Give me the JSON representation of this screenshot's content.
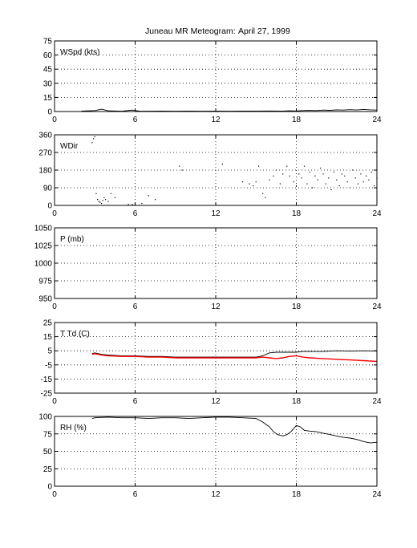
{
  "title": {
    "main": "Juneau MR Meteogram:",
    "date": "April 27, 1999"
  },
  "chart_data": [
    {
      "type": "line",
      "label": "WSpd (kts)",
      "xlim": [
        0,
        24
      ],
      "xticks": [
        "0",
        "6",
        "12",
        "18",
        "24"
      ],
      "ylim": [
        0,
        75
      ],
      "yticks": [
        "0",
        "15",
        "30",
        "45",
        "60",
        "75"
      ],
      "grid": true,
      "series": [
        {
          "color": "#000000",
          "x": [
            2.0,
            3.0,
            3.5,
            4.0,
            5.0,
            5.8,
            6.3,
            7.0,
            8.0,
            9.0,
            10.0,
            11.0,
            12.0,
            13.0,
            14.0,
            15.0,
            16.0,
            17.0,
            17.5,
            18.0,
            18.5,
            19.0,
            19.5,
            20.0,
            20.5,
            21.0,
            21.5,
            22.0,
            22.5,
            23.0,
            23.5,
            24.0
          ],
          "y": [
            0.5,
            1.0,
            2.5,
            0.8,
            0.3,
            1.5,
            0.5,
            0.3,
            0.4,
            0.3,
            0.5,
            0.3,
            0.4,
            0.3,
            0.5,
            0.4,
            0.6,
            0.5,
            0.8,
            0.6,
            1.0,
            1.2,
            1.0,
            1.5,
            1.3,
            1.8,
            1.5,
            2.0,
            1.6,
            2.2,
            1.8,
            1.5
          ]
        }
      ]
    },
    {
      "type": "scatter",
      "label": "WDir",
      "xlim": [
        0,
        24
      ],
      "xticks": [
        "0",
        "6",
        "12",
        "18",
        "24"
      ],
      "ylim": [
        0,
        360
      ],
      "yticks": [
        "0",
        "90",
        "180",
        "270",
        "360"
      ],
      "grid": true,
      "series": [
        {
          "color": "#000000",
          "x": [
            2.8,
            2.9,
            3.0,
            3.1,
            3.2,
            3.3,
            3.4,
            3.5,
            3.6,
            3.7,
            3.8,
            4.0,
            4.2,
            4.5,
            5.5,
            5.8,
            6.0,
            6.5,
            7.0,
            7.5,
            9.3,
            9.5,
            12.5,
            14.0,
            14.5,
            14.8,
            15.0,
            15.2,
            15.5,
            15.7,
            16.0,
            16.3,
            16.5,
            16.8,
            17.0,
            17.3,
            17.5,
            17.8,
            18.0,
            18.2,
            18.4,
            18.6,
            18.8,
            19.0,
            19.2,
            19.4,
            19.6,
            19.8,
            20.0,
            20.2,
            20.4,
            20.6,
            20.8,
            21.0,
            21.2,
            21.4,
            21.6,
            21.8,
            22.0,
            22.2,
            22.4,
            22.6,
            22.8,
            23.0,
            23.2,
            23.4,
            23.6,
            23.8,
            24.0
          ],
          "y": [
            320,
            340,
            350,
            60,
            30,
            20,
            15,
            10,
            25,
            40,
            30,
            20,
            60,
            40,
            5,
            5,
            5,
            10,
            50,
            30,
            200,
            180,
            210,
            120,
            110,
            100,
            120,
            200,
            60,
            40,
            130,
            150,
            180,
            110,
            160,
            200,
            150,
            120,
            100,
            160,
            140,
            200,
            110,
            170,
            90,
            150,
            130,
            190,
            160,
            110,
            140,
            80,
            170,
            130,
            100,
            160,
            150,
            120,
            90,
            180,
            140,
            110,
            160,
            120,
            150,
            130,
            170,
            100,
            140
          ]
        }
      ]
    },
    {
      "type": "line",
      "label": "P (mb)",
      "xlim": [
        0,
        24
      ],
      "xticks": [
        "0",
        "6",
        "12",
        "18",
        "24"
      ],
      "ylim": [
        950,
        1050
      ],
      "yticks": [
        "950",
        "975",
        "1000",
        "1025",
        "1050"
      ],
      "grid": true,
      "series": []
    },
    {
      "type": "line",
      "label": "T Td (C)",
      "xlim": [
        0,
        24
      ],
      "xticks": [
        "0",
        "6",
        "12",
        "18",
        "24"
      ],
      "ylim": [
        -25,
        25
      ],
      "yticks": [
        "-25",
        "-15",
        "-5",
        "5",
        "15",
        "25"
      ],
      "grid": true,
      "series": [
        {
          "color": "#000000",
          "x": [
            2.8,
            3.0,
            3.5,
            4.0,
            5.0,
            6.0,
            7.0,
            8.0,
            9.0,
            10.0,
            11.0,
            12.0,
            13.0,
            14.0,
            15.0,
            15.5,
            16.0,
            16.5,
            17.0,
            17.5,
            18.0,
            18.5,
            19.0,
            20.0,
            21.0,
            22.0,
            23.0,
            24.0
          ],
          "y": [
            3.0,
            3.5,
            2.5,
            2.0,
            1.5,
            1.5,
            1.0,
            1.0,
            0.5,
            0.5,
            0.5,
            0.5,
            0.5,
            0.5,
            0.5,
            1.5,
            3.5,
            4.0,
            4.0,
            4.0,
            4.0,
            4.5,
            4.5,
            4.5,
            5.0,
            4.8,
            5.0,
            4.8
          ]
        },
        {
          "color": "#ff0000",
          "x": [
            2.8,
            3.0,
            3.5,
            4.0,
            5.0,
            6.0,
            7.0,
            8.0,
            9.0,
            10.0,
            11.0,
            12.0,
            13.0,
            14.0,
            15.0,
            15.5,
            16.0,
            16.5,
            17.0,
            17.5,
            18.0,
            18.5,
            19.0,
            20.0,
            21.0,
            22.0,
            23.0,
            24.0
          ],
          "y": [
            2.5,
            3.0,
            2.0,
            1.5,
            1.0,
            1.0,
            0.5,
            0.5,
            0.0,
            0.0,
            0.0,
            0.0,
            0.0,
            0.0,
            0.0,
            0.5,
            0.0,
            -0.5,
            0.0,
            1.0,
            1.5,
            0.5,
            0.0,
            -0.5,
            -1.0,
            -1.5,
            -2.0,
            -2.5
          ]
        }
      ]
    },
    {
      "type": "line",
      "label": "RH (%)",
      "xlim": [
        0,
        24
      ],
      "xticks": [
        "0",
        "6",
        "12",
        "18",
        "24"
      ],
      "ylim": [
        0,
        100
      ],
      "yticks": [
        "0",
        "25",
        "50",
        "75",
        "100"
      ],
      "grid": true,
      "series": [
        {
          "color": "#000000",
          "x": [
            2.8,
            3.0,
            4.0,
            5.0,
            6.0,
            7.0,
            8.0,
            9.0,
            10.0,
            11.0,
            12.0,
            13.0,
            14.0,
            15.0,
            15.5,
            16.0,
            16.3,
            16.6,
            17.0,
            17.3,
            17.6,
            18.0,
            18.3,
            18.6,
            19.0,
            19.5,
            20.0,
            20.5,
            21.0,
            21.5,
            22.0,
            22.5,
            23.0,
            23.5,
            24.0
          ],
          "y": [
            97,
            98,
            99,
            98,
            98,
            97,
            98,
            98,
            97,
            98,
            99,
            99,
            98,
            97,
            92,
            85,
            78,
            74,
            72,
            74,
            78,
            87,
            85,
            80,
            79,
            78,
            76,
            74,
            72,
            70,
            69,
            67,
            64,
            62,
            63
          ]
        }
      ]
    }
  ]
}
